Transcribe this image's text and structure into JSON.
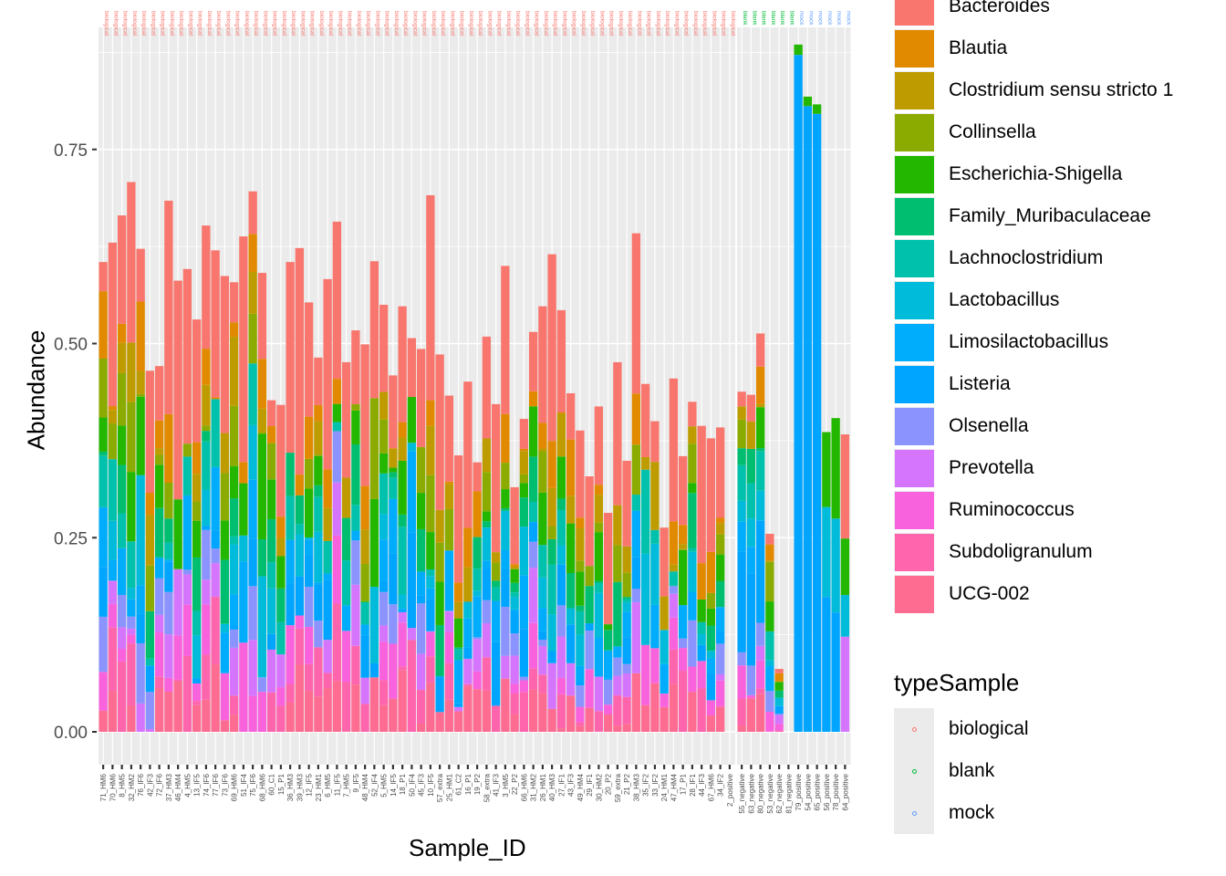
{
  "chart_data": {
    "type": "bar",
    "stacked": true,
    "title": "",
    "xlabel": "Sample_ID",
    "ylabel": "Abundance",
    "ylim": [
      0,
      0.9
    ],
    "yticks": [
      0.0,
      0.25,
      0.5,
      0.75
    ],
    "ytick_labels": [
      "0.00",
      "0.25",
      "0.50",
      "0.75"
    ],
    "grid": true,
    "legend_position": "right",
    "fill_legend": {
      "title": "",
      "entries": [
        {
          "name": "Bacteroides",
          "color": "#F8766D"
        },
        {
          "name": "Blautia",
          "color": "#E18A00"
        },
        {
          "name": "Clostridium sensu stricto 1",
          "color": "#BE9C00"
        },
        {
          "name": "Collinsella",
          "color": "#8CAB00"
        },
        {
          "name": "Escherichia-Shigella",
          "color": "#24B700"
        },
        {
          "name": "Family_Muribaculaceae",
          "color": "#00BE70"
        },
        {
          "name": "Lachnoclostridium",
          "color": "#00C1AB"
        },
        {
          "name": "Lactobacillus",
          "color": "#00BBDA"
        },
        {
          "name": "Limosilactobacillus",
          "color": "#00ACFC"
        },
        {
          "name": "Listeria",
          "color": "#00A5FF"
        },
        {
          "name": "Olsenella",
          "color": "#8B93FF"
        },
        {
          "name": "Prevotella",
          "color": "#D575FE"
        },
        {
          "name": "Ruminococcus",
          "color": "#F962DD"
        },
        {
          "name": "Subdoligranulum",
          "color": "#FF65AC"
        },
        {
          "name": "UCG-002",
          "color": "#FF6C91"
        }
      ]
    },
    "facet_legend": {
      "title": "typeSample",
      "entries": [
        {
          "name": "biological",
          "color": "#F8766D"
        },
        {
          "name": "blank",
          "color": "#00BA38"
        },
        {
          "name": "mock",
          "color": "#619CFF"
        }
      ]
    },
    "facets": [
      {
        "name": "biological",
        "strip_label": "biological",
        "color": "#F8766D",
        "samples": [
          "71_HM6",
          "70_HM6",
          "8_HM5",
          "32_HM2",
          "76_IF6",
          "42_IF3",
          "72_IF6",
          "37_HM3",
          "46_HM4",
          "4_HM5",
          "13_IF5",
          "74_IF6",
          "77_IF6",
          "73_IF6",
          "69_HM6",
          "51_IF4",
          "75_IF6",
          "68_HM6",
          "60_C1",
          "15_P1",
          "36_HM3",
          "39_HM3",
          "12_IF5",
          "23_HM1",
          "6_HM5",
          "11_IF5",
          "7_HM5",
          "9_IF5",
          "48_HM4",
          "52_IF4",
          "5_HM5",
          "14_IF5",
          "18_P1",
          "50_IF4",
          "45_IF3",
          "10_IF5",
          "57_extra",
          "25_HM1",
          "61_C2",
          "16_P1",
          "19_P2",
          "58_extra",
          "41_IF3",
          "3_HM5",
          "22_P2",
          "66_HM6",
          "31_HM2",
          "26_HM1",
          "40_HM3",
          "27_IF1",
          "43_IF3",
          "49_HM4",
          "29_IF1",
          "30_HM2",
          "20_P2",
          "59_extra",
          "21_P2",
          "38_HM3",
          "35_IF2",
          "33_IF2",
          "24_HM1",
          "47_HM4",
          "17_P1",
          "28_IF1",
          "44_IF3",
          "67_HM6",
          "34_IF2",
          "2_positive"
        ],
        "totals": [
          0.605,
          0.63,
          0.665,
          0.708,
          0.622,
          0.465,
          0.471,
          0.684,
          0.581,
          0.596,
          0.531,
          0.652,
          0.62,
          0.587,
          0.579,
          0.638,
          0.696,
          0.591,
          0.427,
          0.421,
          0.605,
          0.623,
          0.553,
          0.482,
          0.583,
          0.657,
          0.476,
          0.517,
          0.499,
          0.606,
          0.55,
          0.459,
          0.548,
          0.507,
          0.493,
          0.691,
          0.486,
          0.433,
          0.356,
          0.451,
          0.347,
          0.509,
          0.422,
          0.6,
          0.315,
          0.403,
          0.515,
          0.548,
          0.615,
          0.543,
          0.436,
          0.388,
          0.329,
          0.419,
          0.282,
          0.476,
          0.349,
          0.642,
          0.448,
          0.4,
          0.263,
          0.455,
          0.355,
          0.425,
          0.394,
          0.378,
          0.392,
          0.0
        ]
      },
      {
        "name": "blank",
        "strip_label": "blank",
        "color": "#00BA38",
        "samples": [
          "55_negative",
          "63_negative",
          "80_negative",
          "53_negative",
          "62_negative",
          "81_negative"
        ],
        "totals": [
          0.438,
          0.434,
          0.513,
          0.255,
          0.081,
          0.0
        ]
      },
      {
        "name": "mock",
        "strip_label": "mock",
        "color": "#619CFF",
        "samples": [
          "79_positive",
          "54_positive",
          "65_positive",
          "56_positive",
          "78_positive",
          "64_positive"
        ],
        "totals": [
          0.885,
          0.818,
          0.808,
          0.386,
          0.404,
          0.383
        ]
      }
    ]
  }
}
